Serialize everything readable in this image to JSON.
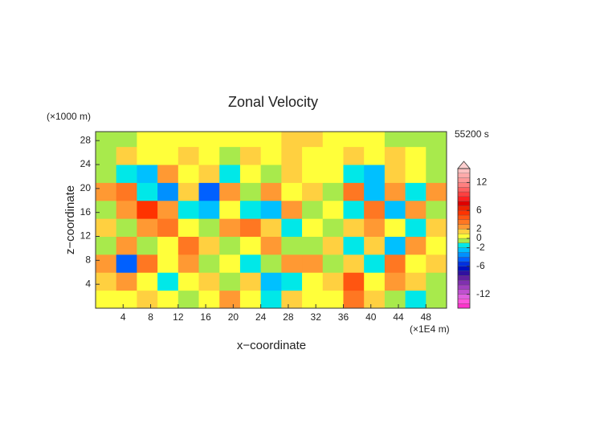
{
  "chart_data": {
    "type": "heatmap",
    "title": "Zonal Velocity",
    "y_unit_label": "(×1000 m)",
    "x_unit_label": "(×1E4 m)",
    "time_label": "55200 s",
    "xlabel": "x−coordinate",
    "ylabel": "z−coordinate",
    "xlim": [
      0,
      51
    ],
    "ylim": [
      0,
      29.5
    ],
    "xticks": [
      4,
      8,
      12,
      16,
      20,
      24,
      28,
      32,
      36,
      40,
      44,
      48
    ],
    "yticks": [
      4,
      8,
      12,
      16,
      20,
      24,
      28
    ],
    "xbins": [
      0,
      3,
      6,
      9,
      12,
      15,
      18,
      21,
      24,
      27,
      30,
      33,
      36,
      39,
      42,
      45,
      48,
      51
    ],
    "ybins": [
      0,
      3,
      6,
      9,
      12,
      15,
      18,
      21,
      24,
      27,
      29.5
    ],
    "z": [
      [
        0,
        0.5,
        1,
        0.5,
        -1,
        0.5,
        2,
        0.5,
        -2,
        1,
        0.5,
        0.5,
        3,
        1,
        -1,
        -2,
        -0.5
      ],
      [
        1,
        2,
        0.5,
        -2,
        0.5,
        1,
        -1,
        1,
        -3,
        -2,
        0.5,
        1,
        4,
        0.5,
        2,
        1,
        -1
      ],
      [
        2,
        -5,
        3,
        0.5,
        2,
        -0.5,
        0.5,
        -2,
        -1,
        2,
        2,
        -0.5,
        1,
        -2,
        3,
        0.5,
        1
      ],
      [
        -0.5,
        2,
        -1,
        0.5,
        3,
        1,
        -1,
        0.5,
        2,
        -0.5,
        -1,
        1,
        -2,
        1,
        -3,
        2,
        0.5
      ],
      [
        1,
        -0.5,
        2,
        3,
        0.5,
        -1,
        2,
        3,
        1,
        -2,
        0.5,
        -0.5,
        1,
        2,
        0.5,
        -2,
        1
      ],
      [
        -1,
        2,
        5,
        2,
        -2,
        -3,
        0.5,
        -2,
        -3,
        2,
        -1,
        0.5,
        -2,
        3,
        -3,
        2,
        -0.5
      ],
      [
        2,
        3,
        -2,
        -4,
        1,
        -5,
        2,
        -1,
        2,
        0.5,
        1,
        -0.5,
        3,
        -3,
        2,
        -2,
        2
      ],
      [
        -0.5,
        -2,
        -3,
        2,
        0.5,
        1,
        -2,
        0.5,
        -0.5,
        1,
        0.5,
        0.5,
        -2,
        -3,
        1,
        0.5,
        -0.5
      ],
      [
        -0.5,
        1,
        0.5,
        0.5,
        1,
        0.5,
        -0.5,
        1,
        0.5,
        1,
        0.5,
        0.5,
        1,
        0.5,
        1,
        0.5,
        -0.5
      ],
      [
        -0.5,
        -0.5,
        0.5,
        0.5,
        0.5,
        0.5,
        0.5,
        0.5,
        0.5,
        1,
        1,
        0.5,
        0.5,
        0.5,
        -0.5,
        -0.5,
        -0.5
      ]
    ],
    "colorbar": {
      "bounds": [
        -15,
        -14,
        -13,
        -12,
        -11,
        -10,
        -9,
        -8,
        -7,
        -6,
        -5,
        -4,
        -3,
        -2,
        -1,
        0,
        1,
        2,
        3,
        4,
        5,
        6,
        7,
        8,
        9,
        10,
        11,
        12,
        13,
        14,
        15
      ],
      "colors": [
        "#ff33cc",
        "#ff55dd",
        "#e060e0",
        "#c050d0",
        "#a040c0",
        "#8030b0",
        "#6020a0",
        "#3010a0",
        "#0010c0",
        "#0030e0",
        "#0060ff",
        "#0090ff",
        "#00c0ff",
        "#00e8e8",
        "#a8ea4c",
        "#ffff3a",
        "#ffd040",
        "#ff9933",
        "#ff7722",
        "#ff5511",
        "#ff3300",
        "#ee2200",
        "#dd0000",
        "#ff2020",
        "#ff4040",
        "#ff6060",
        "#ff8080",
        "#ff9999",
        "#ffaaaa",
        "#ffc0c0"
      ],
      "over_color": "#ffd0d0",
      "ticks": [
        -12,
        -6,
        -2,
        0,
        2,
        6,
        12
      ]
    }
  }
}
